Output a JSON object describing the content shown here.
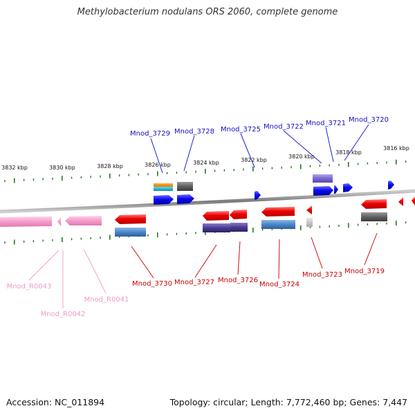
{
  "title": "Methylobacterium nodulans ORS 2060, complete genome",
  "footer": {
    "accession": "Accession: NC_011894",
    "summary": "Topology: circular; Length: 7,772,460 bp; Genes: 7,447"
  },
  "colors": {
    "forward_label": "#1010c0",
    "reverse_label": "#cc0000",
    "rna_label": "#f09ac8",
    "tick": "#227722",
    "backbone": "#888888"
  },
  "scale_labels": [
    "3832 kbp",
    "3830 kbp",
    "3828 kbp",
    "3826 kbp",
    "3824 kbp",
    "3822 kbp",
    "3820 kbp",
    "3818 kbp",
    "3816 kbp"
  ],
  "forward_genes": [
    "Mnod_3729",
    "Mnod_3728",
    "Mnod_3725",
    "Mnod_3722",
    "Mnod_3721",
    "Mnod_3720"
  ],
  "reverse_genes": [
    "Mnod_3730",
    "Mnod_3727",
    "Mnod_3726",
    "Mnod_3724",
    "Mnod_3723",
    "Mnod_3719"
  ],
  "rna_genes": [
    "Mnod_R0043",
    "Mnod_R0042",
    "Mnod_R0041"
  ]
}
